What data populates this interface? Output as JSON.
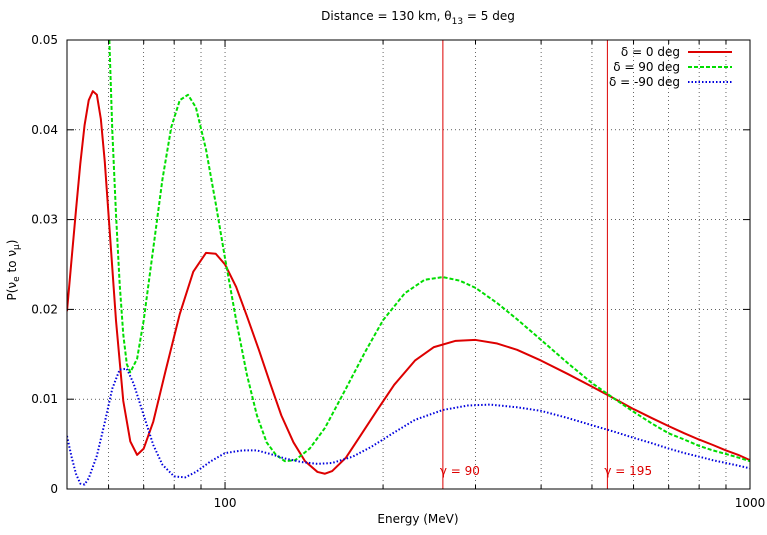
{
  "chart_data": {
    "type": "line",
    "title_parts": {
      "prefix": "Distance = 130 km, ",
      "theta": "θ",
      "theta_sub": "13",
      "suffix": " = 5 deg"
    },
    "xlabel": "Energy (MeV)",
    "ylabel_parts": {
      "p": "P(",
      "nu1": "ν",
      "e": "e",
      "to": " to ",
      "nu2": "ν",
      "mu": "μ",
      "close": ")"
    },
    "x_scale": "log",
    "xlim": [
      50,
      1000
    ],
    "ylim": [
      0,
      0.05
    ],
    "grid": true,
    "legend_position": "top-right",
    "x_ticks": [
      {
        "value": 100,
        "label": "100"
      },
      {
        "value": 1000,
        "label": "1000"
      }
    ],
    "y_ticks": [
      {
        "value": 0,
        "label": "0"
      },
      {
        "value": 0.01,
        "label": "0.01"
      },
      {
        "value": 0.02,
        "label": "0.02"
      },
      {
        "value": 0.03,
        "label": "0.03"
      },
      {
        "value": 0.04,
        "label": "0.04"
      },
      {
        "value": 0.05,
        "label": "0.05"
      }
    ],
    "series": [
      {
        "name": "δ = 0 deg",
        "color": "#dd0000",
        "dash": "solid",
        "points": [
          [
            50,
            0.0198
          ],
          [
            51,
            0.0255
          ],
          [
            52,
            0.031
          ],
          [
            53,
            0.0362
          ],
          [
            54,
            0.0405
          ],
          [
            55,
            0.0433
          ],
          [
            56,
            0.0443
          ],
          [
            57,
            0.0439
          ],
          [
            58,
            0.0412
          ],
          [
            59,
            0.0365
          ],
          [
            60,
            0.0305
          ],
          [
            62,
            0.0187
          ],
          [
            64,
            0.0098
          ],
          [
            66,
            0.0053
          ],
          [
            68,
            0.0038
          ],
          [
            70,
            0.0045
          ],
          [
            73,
            0.0075
          ],
          [
            77,
            0.0131
          ],
          [
            82,
            0.0195
          ],
          [
            87,
            0.0242
          ],
          [
            92,
            0.0263
          ],
          [
            96,
            0.0262
          ],
          [
            100,
            0.025
          ],
          [
            105,
            0.0225
          ],
          [
            110,
            0.0193
          ],
          [
            116,
            0.0155
          ],
          [
            122,
            0.0117
          ],
          [
            128,
            0.0082
          ],
          [
            135,
            0.0052
          ],
          [
            142,
            0.0031
          ],
          [
            150,
            0.0019
          ],
          [
            155,
            0.0017
          ],
          [
            160,
            0.002
          ],
          [
            170,
            0.0035
          ],
          [
            180,
            0.0057
          ],
          [
            195,
            0.0088
          ],
          [
            210,
            0.0116
          ],
          [
            230,
            0.0143
          ],
          [
            250,
            0.0158
          ],
          [
            275,
            0.0165
          ],
          [
            300,
            0.0166
          ],
          [
            330,
            0.0162
          ],
          [
            360,
            0.0155
          ],
          [
            400,
            0.0143
          ],
          [
            450,
            0.0128
          ],
          [
            500,
            0.0114
          ],
          [
            550,
            0.0101
          ],
          [
            600,
            0.0089
          ],
          [
            650,
            0.0079
          ],
          [
            700,
            0.007
          ],
          [
            750,
            0.0062
          ],
          [
            800,
            0.0055
          ],
          [
            850,
            0.0049
          ],
          [
            900,
            0.0043
          ],
          [
            950,
            0.0038
          ],
          [
            1000,
            0.0032
          ]
        ]
      },
      {
        "name": "δ = 90 deg",
        "color": "#00dd00",
        "dash": "dashed",
        "points": [
          [
            60.2,
            0.05
          ],
          [
            61,
            0.0398
          ],
          [
            62,
            0.0305
          ],
          [
            63,
            0.0228
          ],
          [
            64,
            0.0172
          ],
          [
            65,
            0.0139
          ],
          [
            66,
            0.013
          ],
          [
            68,
            0.0145
          ],
          [
            70,
            0.0188
          ],
          [
            73,
            0.0268
          ],
          [
            76,
            0.0345
          ],
          [
            79,
            0.0403
          ],
          [
            82,
            0.0433
          ],
          [
            85,
            0.0439
          ],
          [
            88,
            0.0425
          ],
          [
            92,
            0.0378
          ],
          [
            96,
            0.0318
          ],
          [
            100,
            0.0257
          ],
          [
            105,
            0.0188
          ],
          [
            110,
            0.0128
          ],
          [
            115,
            0.0082
          ],
          [
            120,
            0.0052
          ],
          [
            125,
            0.0038
          ],
          [
            130,
            0.0031
          ],
          [
            136,
            0.0032
          ],
          [
            145,
            0.0045
          ],
          [
            155,
            0.0068
          ],
          [
            170,
            0.0112
          ],
          [
            185,
            0.0153
          ],
          [
            200,
            0.0188
          ],
          [
            220,
            0.0218
          ],
          [
            240,
            0.0233
          ],
          [
            260,
            0.0236
          ],
          [
            280,
            0.0232
          ],
          [
            300,
            0.0224
          ],
          [
            330,
            0.0207
          ],
          [
            360,
            0.0189
          ],
          [
            400,
            0.0166
          ],
          [
            450,
            0.014
          ],
          [
            500,
            0.0118
          ],
          [
            550,
            0.0101
          ],
          [
            600,
            0.0086
          ],
          [
            650,
            0.0073
          ],
          [
            700,
            0.0062
          ],
          [
            750,
            0.0055
          ],
          [
            800,
            0.0048
          ],
          [
            850,
            0.0043
          ],
          [
            900,
            0.0039
          ],
          [
            950,
            0.0035
          ],
          [
            1000,
            0.0031
          ]
        ]
      },
      {
        "name": "δ = -90 deg",
        "color": "#0000dd",
        "dash": "dotted",
        "points": [
          [
            50,
            0.0059
          ],
          [
            51,
            0.0036
          ],
          [
            52,
            0.0017
          ],
          [
            53,
            0.0006
          ],
          [
            54,
            0.0005
          ],
          [
            55,
            0.0012
          ],
          [
            57,
            0.0037
          ],
          [
            59,
            0.0074
          ],
          [
            61,
            0.0112
          ],
          [
            63,
            0.0133
          ],
          [
            65,
            0.0134
          ],
          [
            67,
            0.0117
          ],
          [
            70,
            0.0082
          ],
          [
            73,
            0.0049
          ],
          [
            76,
            0.0027
          ],
          [
            80,
            0.0014
          ],
          [
            84,
            0.0013
          ],
          [
            88,
            0.0019
          ],
          [
            94,
            0.0031
          ],
          [
            100,
            0.004
          ],
          [
            108,
            0.0043
          ],
          [
            115,
            0.0043
          ],
          [
            122,
            0.0039
          ],
          [
            130,
            0.0034
          ],
          [
            140,
            0.003
          ],
          [
            150,
            0.0028
          ],
          [
            160,
            0.0029
          ],
          [
            175,
            0.0036
          ],
          [
            190,
            0.0047
          ],
          [
            210,
            0.0063
          ],
          [
            230,
            0.0077
          ],
          [
            260,
            0.0088
          ],
          [
            290,
            0.0093
          ],
          [
            320,
            0.0094
          ],
          [
            360,
            0.0091
          ],
          [
            400,
            0.0087
          ],
          [
            450,
            0.0079
          ],
          [
            500,
            0.0071
          ],
          [
            550,
            0.0064
          ],
          [
            600,
            0.0057
          ],
          [
            650,
            0.0051
          ],
          [
            700,
            0.0045
          ],
          [
            750,
            0.004
          ],
          [
            800,
            0.0036
          ],
          [
            850,
            0.0032
          ],
          [
            900,
            0.0029
          ],
          [
            950,
            0.0026
          ],
          [
            1000,
            0.0023
          ]
        ]
      }
    ],
    "markers": [
      {
        "label": "γ = 90",
        "x": 260,
        "color": "#dd0000"
      },
      {
        "label": "γ = 195",
        "x": 535,
        "color": "#dd0000"
      }
    ]
  }
}
